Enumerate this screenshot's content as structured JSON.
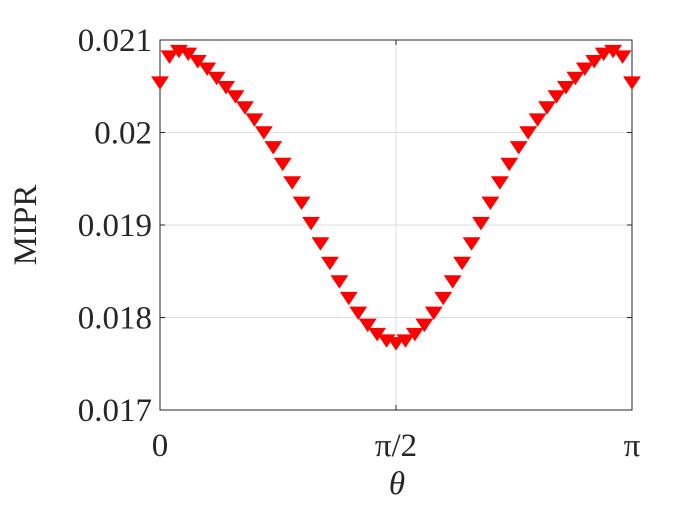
{
  "chart_data": {
    "type": "scatter",
    "marker": "triangle-down",
    "x_label": "θ",
    "y_label": "MIPR",
    "xlim": [
      0,
      3.1416
    ],
    "ylim": [
      0.017,
      0.021
    ],
    "xticks": [
      0,
      {
        "value": 1.5708,
        "label": "π/2"
      },
      {
        "value": 3.1416,
        "label": "π"
      }
    ],
    "yticks": [
      0.017,
      0.018,
      0.019,
      0.02,
      0.021
    ],
    "grid": true,
    "series": [
      {
        "color": "#ff0000",
        "x": [
          0,
          0.0628,
          0.1257,
          0.1885,
          0.2513,
          0.3142,
          0.377,
          0.4398,
          0.5027,
          0.5655,
          0.6283,
          0.6912,
          0.754,
          0.8168,
          0.8796,
          0.9425,
          1.0053,
          1.0681,
          1.131,
          1.1938,
          1.2566,
          1.3195,
          1.3823,
          1.4451,
          1.508,
          1.5708,
          1.6336,
          1.6965,
          1.7593,
          1.8221,
          1.885,
          1.9478,
          2.0106,
          2.0735,
          2.1363,
          2.1991,
          2.2619,
          2.3248,
          2.3876,
          2.4504,
          2.5133,
          2.5761,
          2.6389,
          2.7018,
          2.7646,
          2.8274,
          2.8903,
          2.9531,
          3.0159,
          3.0788,
          3.1416
        ],
        "values": [
          0.02055,
          0.02083,
          0.02089,
          0.02086,
          0.02078,
          0.0207,
          0.0206,
          0.0205,
          0.0204,
          0.02028,
          0.02015,
          0.02001,
          0.01985,
          0.01967,
          0.01947,
          0.01925,
          0.01903,
          0.01881,
          0.0186,
          0.0184,
          0.01822,
          0.01806,
          0.01793,
          0.01783,
          0.01776,
          0.01773,
          0.01776,
          0.01783,
          0.01793,
          0.01806,
          0.01822,
          0.0184,
          0.0186,
          0.01881,
          0.01903,
          0.01925,
          0.01947,
          0.01967,
          0.01985,
          0.02001,
          0.02015,
          0.02028,
          0.0204,
          0.0205,
          0.0206,
          0.0207,
          0.02078,
          0.02086,
          0.02089,
          0.02083,
          0.02055
        ]
      }
    ]
  }
}
